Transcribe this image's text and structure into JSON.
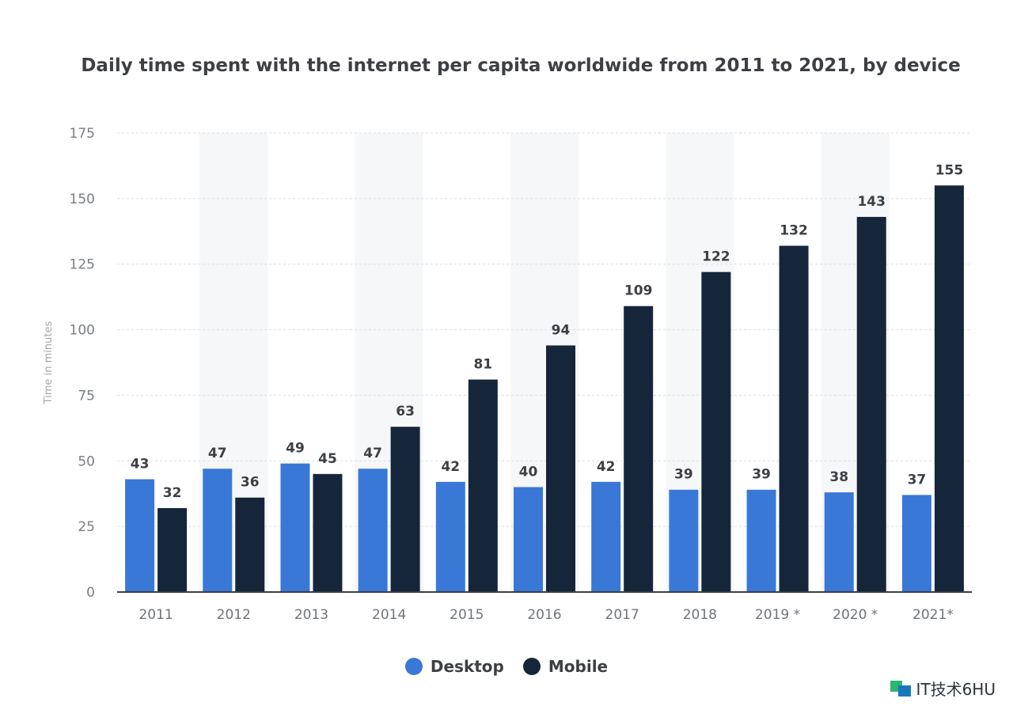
{
  "chart_data": {
    "type": "bar",
    "title": "Daily time spent with the internet per capita worldwide from 2011 to 2021, by device",
    "xlabel": "",
    "ylabel": "Time in minutes",
    "ylim": [
      0,
      175
    ],
    "yticks": [
      0,
      25,
      50,
      75,
      100,
      125,
      150,
      175
    ],
    "categories": [
      "2011",
      "2012",
      "2013",
      "2014",
      "2015",
      "2016",
      "2017",
      "2018",
      "2019 *",
      "2020 *",
      "2021*"
    ],
    "series": [
      {
        "name": "Desktop",
        "color": "#3a78d8",
        "values": [
          43,
          47,
          49,
          47,
          42,
          40,
          42,
          39,
          39,
          38,
          37
        ]
      },
      {
        "name": "Mobile",
        "color": "#15263a",
        "values": [
          32,
          36,
          45,
          63,
          81,
          94,
          109,
          122,
          132,
          143,
          155
        ]
      }
    ],
    "grid": true,
    "legend_position": "bottom"
  },
  "watermark": {
    "text": "IT技术6HU"
  }
}
